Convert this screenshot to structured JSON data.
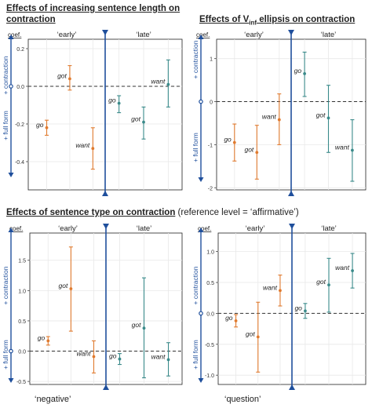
{
  "titles": {
    "p1_line1": "Effects of increasing sentence length on",
    "p1_line2": "contraction",
    "p2_pre": "Effects of V",
    "p2_sub": "inf",
    "p2_post": " ellipsis on contraction",
    "p3_bold": "Effects of sentence type on contraction",
    "p3_plain": " (reference level = ‘affirmative’)"
  },
  "footers": {
    "p3": "‘negative’",
    "p4": "‘question’"
  },
  "labels": {
    "coef": "coef.",
    "early": "‘early’",
    "late": "‘late’",
    "plus_contraction": "+ contraction",
    "plus_full_form": "+ full form"
  },
  "colors": {
    "early": "#e07a2e",
    "late": "#3a8a8a",
    "divider": "#1f4f9c",
    "grid": "#e8e8e8"
  },
  "chart_data": [
    {
      "type": "scatter",
      "title": "Effects of increasing sentence length on contraction",
      "ylim": [
        -0.55,
        0.25
      ],
      "yticks": [
        "0.2",
        "0.0",
        "-0.2",
        "-0.4"
      ],
      "ytick_values": [
        0.2,
        0.0,
        -0.2,
        -0.4
      ],
      "points": [
        {
          "label": "go",
          "period": "early",
          "y": -0.22,
          "lo": -0.26,
          "hi": -0.18
        },
        {
          "label": "got",
          "period": "early",
          "y": 0.04,
          "lo": -0.02,
          "hi": 0.11
        },
        {
          "label": "want",
          "period": "early",
          "y": -0.33,
          "lo": -0.44,
          "hi": -0.22
        },
        {
          "label": "go",
          "period": "late",
          "y": -0.09,
          "lo": -0.14,
          "hi": -0.05
        },
        {
          "label": "got",
          "period": "late",
          "y": -0.19,
          "lo": -0.28,
          "hi": -0.11
        },
        {
          "label": "want",
          "period": "late",
          "y": 0.01,
          "lo": -0.11,
          "hi": 0.14
        }
      ]
    },
    {
      "type": "scatter",
      "title": "Effects of V inf ellipsis on contraction",
      "ylim": [
        -2.05,
        1.45
      ],
      "yticks": [
        "1",
        "0",
        "-1",
        "-2"
      ],
      "ytick_values": [
        1,
        0,
        -1,
        -2
      ],
      "points": [
        {
          "label": "go",
          "period": "early",
          "y": -0.95,
          "lo": -1.38,
          "hi": -0.52
        },
        {
          "label": "got",
          "period": "early",
          "y": -1.18,
          "lo": -1.8,
          "hi": -0.55
        },
        {
          "label": "want",
          "period": "early",
          "y": -0.42,
          "lo": -1.0,
          "hi": 0.18
        },
        {
          "label": "go",
          "period": "late",
          "y": 0.65,
          "lo": 0.12,
          "hi": 1.15
        },
        {
          "label": "got",
          "period": "late",
          "y": -0.38,
          "lo": -1.18,
          "hi": 0.38
        },
        {
          "label": "want",
          "period": "late",
          "y": -1.13,
          "lo": -1.85,
          "hi": -0.42
        }
      ]
    },
    {
      "type": "scatter",
      "title": "Effects of sentence type on contraction",
      "ylim": [
        -0.55,
        1.95
      ],
      "yticks": [
        "1.5",
        "1.0",
        "0.5",
        "0.0",
        "-0.5"
      ],
      "ytick_values": [
        1.5,
        1.0,
        0.5,
        0.0,
        -0.5
      ],
      "points": [
        {
          "label": "go",
          "period": "early",
          "y": 0.17,
          "lo": 0.1,
          "hi": 0.24
        },
        {
          "label": "got",
          "period": "early",
          "y": 1.03,
          "lo": 0.33,
          "hi": 1.72
        },
        {
          "label": "want",
          "period": "early",
          "y": -0.09,
          "lo": -0.36,
          "hi": 0.17
        },
        {
          "label": "go",
          "period": "late",
          "y": -0.13,
          "lo": -0.22,
          "hi": -0.04
        },
        {
          "label": "got",
          "period": "late",
          "y": 0.38,
          "lo": -0.44,
          "hi": 1.21
        },
        {
          "label": "want",
          "period": "late",
          "y": -0.14,
          "lo": -0.41,
          "hi": 0.14
        }
      ]
    },
    {
      "type": "scatter",
      "title": "Effects of sentence type on contraction",
      "ylim": [
        -1.15,
        1.3
      ],
      "yticks": [
        "1.0",
        "0.5",
        "0.0",
        "-0.5",
        "-1.0"
      ],
      "ytick_values": [
        1.0,
        0.5,
        0.0,
        -0.5,
        -1.0
      ],
      "points": [
        {
          "label": "go",
          "period": "early",
          "y": -0.12,
          "lo": -0.22,
          "hi": -0.02
        },
        {
          "label": "got",
          "period": "early",
          "y": -0.38,
          "lo": -0.95,
          "hi": 0.18
        },
        {
          "label": "want",
          "period": "early",
          "y": 0.37,
          "lo": 0.12,
          "hi": 0.62
        },
        {
          "label": "go",
          "period": "late",
          "y": 0.04,
          "lo": -0.08,
          "hi": 0.16
        },
        {
          "label": "got",
          "period": "late",
          "y": 0.46,
          "lo": 0.02,
          "hi": 0.89
        },
        {
          "label": "want",
          "period": "late",
          "y": 0.69,
          "lo": 0.41,
          "hi": 0.97
        }
      ]
    }
  ]
}
